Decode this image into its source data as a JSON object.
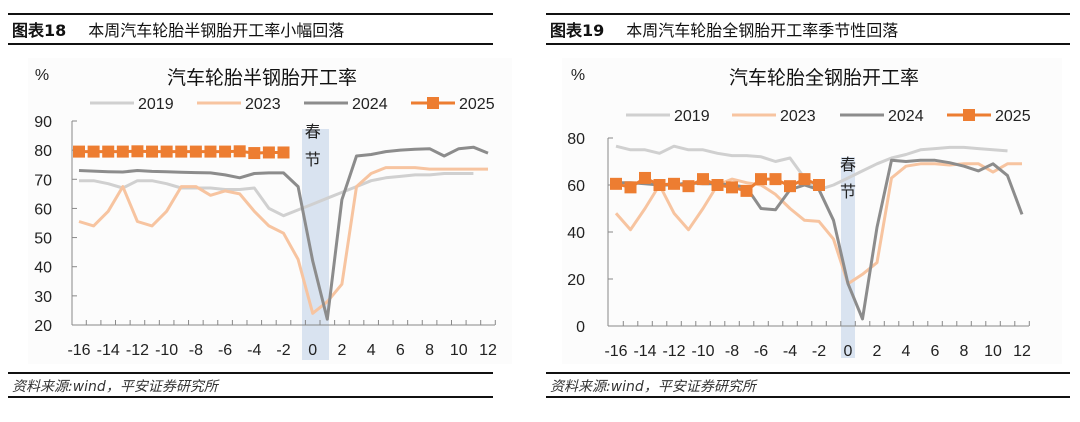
{
  "figures": [
    {
      "label": "图表18",
      "heading": "本周汽车轮胎半钢胎开工率小幅回落",
      "source": "资料来源:wind，平安证券研究所"
    },
    {
      "label": "图表19",
      "heading": "本周汽车轮胎全钢胎开工率季节性回落",
      "source": "资料来源:wind，平安证券研究所"
    }
  ],
  "chart_data": [
    {
      "type": "line",
      "title": "汽车轮胎半钢胎开工率",
      "ylabel": "%",
      "ylim": [
        20,
        90
      ],
      "yticks": [
        20,
        30,
        40,
        50,
        60,
        70,
        80,
        90
      ],
      "xlim": [
        -16,
        12
      ],
      "xticks": [
        -16,
        -14,
        -12,
        -10,
        -8,
        -6,
        -4,
        -2,
        0,
        2,
        4,
        6,
        8,
        10,
        12
      ],
      "annotation": {
        "text": "春节",
        "x": 0
      },
      "legend": "top",
      "x": [
        -16,
        -15,
        -14,
        -13,
        -12,
        -11,
        -10,
        -9,
        -8,
        -7,
        -6,
        -5,
        -4,
        -3,
        -2,
        -1,
        0,
        1,
        2,
        3,
        4,
        5,
        6,
        7,
        8,
        9,
        10,
        11,
        12
      ],
      "series": [
        {
          "name": "2019",
          "color": "#d0d0d0",
          "values": [
            69.5,
            69.5,
            68.5,
            67,
            69.5,
            69.5,
            68.5,
            67,
            67,
            67,
            66.5,
            66.5,
            67,
            60,
            57.5,
            59.5,
            61.5,
            63.5,
            65.5,
            67.5,
            69.5,
            70.5,
            71,
            71.5,
            71.5,
            72,
            72,
            72,
            null
          ]
        },
        {
          "name": "2023",
          "color": "#f7c4a0",
          "values": [
            55.5,
            54,
            59,
            67.5,
            55.5,
            54,
            59,
            67.5,
            67.5,
            64.5,
            66,
            65,
            59,
            54,
            51.5,
            42.5,
            24,
            28,
            34,
            67.5,
            72,
            74,
            74,
            74,
            73.5,
            73.5,
            73.5,
            73.5,
            73.5
          ]
        },
        {
          "name": "2024",
          "color": "#8c8c8c",
          "values": [
            73,
            72.8,
            72.6,
            72.5,
            73,
            72.7,
            72.6,
            72.4,
            72.3,
            72.2,
            71.5,
            70.5,
            72,
            72.2,
            72.2,
            67.5,
            42,
            22,
            63,
            78,
            78.5,
            79.5,
            80,
            80.3,
            80.5,
            78,
            80.5,
            81,
            79
          ]
        },
        {
          "name": "2025",
          "color": "#ed7d31",
          "marker": "square",
          "values": [
            79.5,
            79.5,
            79.5,
            79.5,
            79.6,
            79.5,
            79.5,
            79.5,
            79.5,
            79.5,
            79.5,
            79.6,
            79,
            79.2,
            79.2,
            null,
            null,
            null,
            null,
            null,
            null,
            null,
            null,
            null,
            null,
            null,
            null,
            null,
            null
          ]
        }
      ]
    },
    {
      "type": "line",
      "title": "汽车轮胎全钢胎开工率",
      "ylabel": "%",
      "ylim": [
        0,
        80
      ],
      "yticks": [
        0,
        20,
        40,
        60,
        80
      ],
      "xlim": [
        -16,
        12
      ],
      "xticks": [
        -16,
        -14,
        -12,
        -10,
        -8,
        -6,
        -4,
        -2,
        0,
        2,
        4,
        6,
        8,
        10,
        12
      ],
      "annotation": {
        "text": "春节",
        "x": 0
      },
      "legend": "top",
      "x": [
        -16,
        -15,
        -14,
        -13,
        -12,
        -11,
        -10,
        -9,
        -8,
        -7,
        -6,
        -5,
        -4,
        -3,
        -2,
        -1,
        0,
        1,
        2,
        3,
        4,
        5,
        6,
        7,
        8,
        9,
        10,
        11,
        12
      ],
      "series": [
        {
          "name": "2019",
          "color": "#d0d0d0",
          "values": [
            76.5,
            75,
            75,
            73.5,
            76.5,
            75,
            75,
            73.5,
            72.5,
            72.5,
            72,
            70,
            71.5,
            63,
            58,
            60,
            63,
            66,
            69,
            71.5,
            73,
            75,
            75.5,
            76,
            76,
            75.5,
            75,
            74.5,
            null
          ]
        },
        {
          "name": "2023",
          "color": "#f7c4a0",
          "values": [
            48,
            41,
            50,
            60,
            48,
            41,
            50,
            60,
            62.5,
            61,
            60,
            56,
            50,
            45,
            44.5,
            37,
            18,
            22,
            27,
            63,
            68,
            69,
            69,
            68.5,
            69,
            69,
            65.5,
            69,
            69
          ]
        },
        {
          "name": "2024",
          "color": "#8c8c8c",
          "values": [
            61,
            61,
            60.5,
            60,
            60,
            61,
            60.5,
            60.5,
            60,
            59,
            50,
            49.5,
            58,
            60,
            58,
            45,
            18,
            3,
            42,
            70.5,
            70,
            70.5,
            70.5,
            69.5,
            68,
            66,
            69,
            64,
            47.5
          ]
        },
        {
          "name": "2025",
          "color": "#ed7d31",
          "marker": "square",
          "values": [
            60.5,
            59,
            63,
            60,
            60.5,
            59.5,
            62.5,
            60,
            59,
            57.5,
            62.5,
            62.5,
            59.5,
            62.5,
            60,
            null,
            null,
            null,
            null,
            null,
            null,
            null,
            null,
            null,
            null,
            null,
            null,
            null,
            null
          ]
        }
      ]
    }
  ]
}
